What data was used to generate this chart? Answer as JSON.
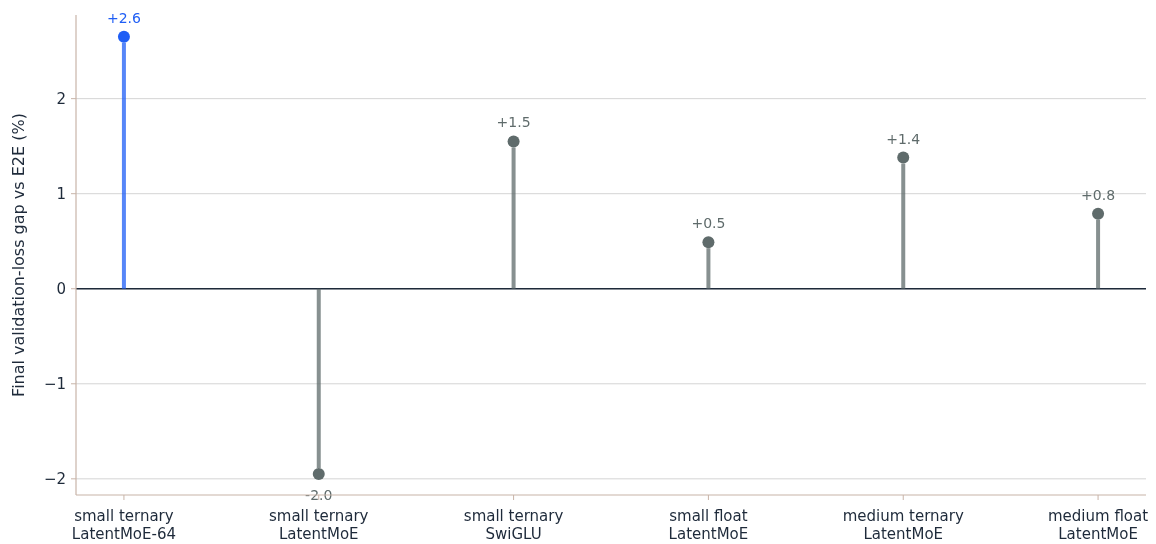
{
  "chart_data": {
    "type": "lollipop",
    "ylabel": "Final validation-loss gap vs E2E (%)",
    "categories": [
      "small ternary\nLatentMoE-64",
      "small ternary\nLatentMoE",
      "small ternary\nSwiGLU",
      "small float\nLatentMoE",
      "medium ternary\nLatentMoE",
      "medium float\nLatentMoE"
    ],
    "values": [
      2.65,
      -1.95,
      1.55,
      0.49,
      1.38,
      0.79
    ],
    "value_labels": [
      "+2.6",
      "-2.0",
      "+1.5",
      "+0.5",
      "+1.4",
      "+0.8"
    ],
    "colors": [
      "#1f5ef5",
      "#5f6b6b",
      "#5f6b6b",
      "#5f6b6b",
      "#5f6b6b",
      "#5f6b6b"
    ],
    "ylim": [
      -2.17,
      2.88
    ],
    "yticks": [
      {
        "value": -2,
        "label": "−2"
      },
      {
        "value": -1,
        "label": "−1"
      },
      0,
      1,
      2
    ],
    "grid": "y",
    "marker": "circle"
  }
}
